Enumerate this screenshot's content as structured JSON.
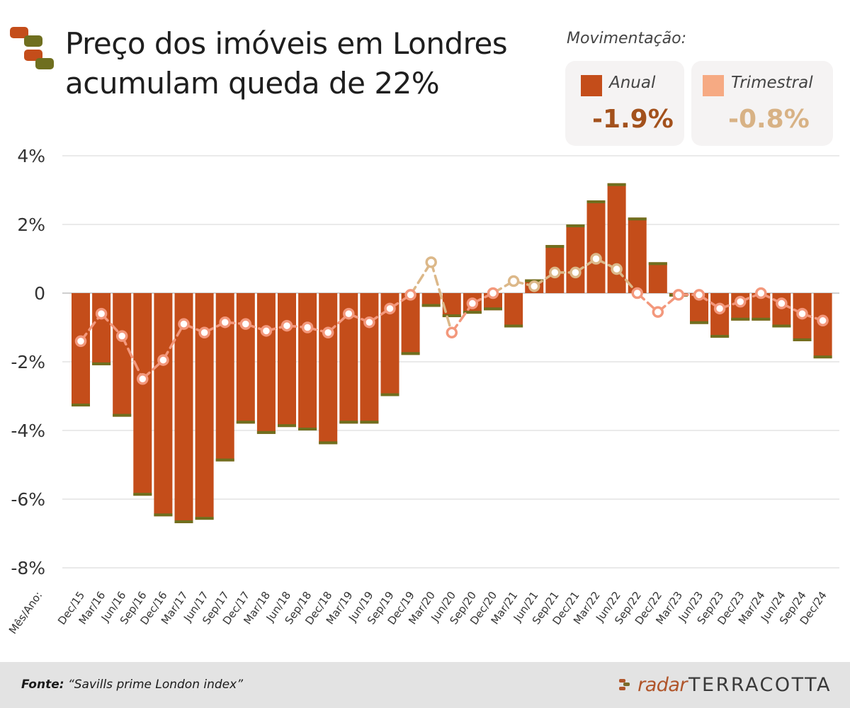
{
  "title": {
    "line1": "Preço dos imóveis em Londres",
    "line2": "acumulam queda de 22%"
  },
  "legend": {
    "heading": "Movimentação:",
    "annual": {
      "label": "Anual",
      "value": "-1.9%",
      "color": "#c44d1a",
      "value_color": "#a3511c"
    },
    "quarterly": {
      "label": "Trimestral",
      "value": "-0.8%",
      "color": "#f6aa83",
      "value_color": "#d8b285"
    }
  },
  "colors": {
    "bar": "#c44d1a",
    "bar_cap": "#6f6f1f",
    "line_neg": "#f3987c",
    "line_pos": "#dcb889",
    "grid": "#dddddd"
  },
  "chart_data": {
    "type": "bar",
    "title": "Preço dos imóveis em Londres acumulam queda de 22%",
    "xlabel": "Mês/Ano:",
    "ylabel": "",
    "ylim": [
      -8,
      4
    ],
    "yticks": [
      {
        "value": 4,
        "label": "4%"
      },
      {
        "value": 2,
        "label": "2%"
      },
      {
        "value": 0,
        "label": "0"
      },
      {
        "value": -2,
        "label": "-2%"
      },
      {
        "value": -4,
        "label": "-4%"
      },
      {
        "value": -6,
        "label": "-6%"
      },
      {
        "value": -8,
        "label": "-8%"
      }
    ],
    "categories": [
      "Dec/15",
      "Mar/16",
      "Jun/16",
      "Sep/16",
      "Dec/16",
      "Mar/17",
      "Jun/17",
      "Sep/17",
      "Dec/17",
      "Mar/18",
      "Jun/18",
      "Sep/18",
      "Dec/18",
      "Mar/19",
      "Jun/19",
      "Sep/19",
      "Dec/19",
      "Mar/20",
      "Jun/20",
      "Sep/20",
      "Dec/20",
      "Mar/21",
      "Jun/21",
      "Sep/21",
      "Dec/21",
      "Mar/22",
      "Jun/22",
      "Sep/22",
      "Dec/22",
      "Mar/23",
      "Jun/23",
      "Sep/23",
      "Dec/23",
      "Mar/24",
      "Jun/24",
      "Sep/24",
      "Dec/24"
    ],
    "series": [
      {
        "name": "Anual",
        "type": "bar",
        "values": [
          -3.3,
          -2.1,
          -3.6,
          -5.9,
          -6.5,
          -6.7,
          -6.6,
          -4.9,
          -3.8,
          -4.1,
          -3.9,
          -4.0,
          -4.4,
          -3.8,
          -3.8,
          -3.0,
          -1.8,
          -0.4,
          -0.7,
          -0.6,
          -0.5,
          -1.0,
          0.4,
          1.4,
          2.0,
          2.7,
          3.2,
          2.2,
          0.9,
          -0.1,
          -0.9,
          -1.3,
          -0.8,
          -0.8,
          -1.0,
          -1.4,
          -1.9
        ]
      },
      {
        "name": "Trimestral",
        "type": "line",
        "values": [
          -1.4,
          -0.6,
          -1.25,
          -2.5,
          -1.95,
          -0.9,
          -1.15,
          -0.85,
          -0.9,
          -1.1,
          -0.95,
          -1.0,
          -1.15,
          -0.6,
          -0.85,
          -0.45,
          -0.05,
          0.9,
          -1.15,
          -0.3,
          0.0,
          0.35,
          0.2,
          0.6,
          0.6,
          1.0,
          0.7,
          0.0,
          -0.55,
          -0.05,
          -0.05,
          -0.45,
          -0.25,
          0.0,
          -0.3,
          -0.6,
          -0.8
        ]
      }
    ]
  },
  "footer": {
    "source_label": "Fonte:",
    "source_text": "“Savills prime London index”",
    "brand_left": "radar",
    "brand_right": "TERRACOTTA"
  }
}
